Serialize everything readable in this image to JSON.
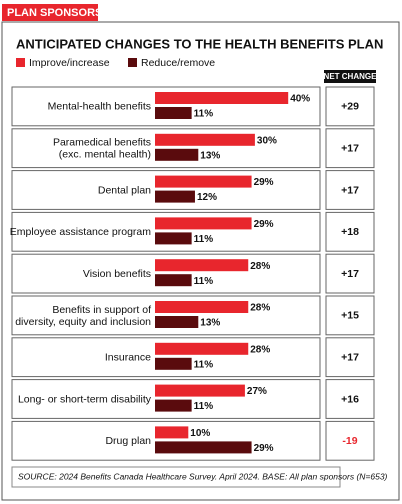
{
  "header": "PLAN SPONSORS",
  "chart_data": {
    "type": "bar",
    "orientation": "horizontal",
    "title": "ANTICIPATED CHANGES TO THE HEALTH BENEFITS PLAN",
    "categories": [
      "Mental-health benefits",
      "Paramedical benefits\n(exc. mental health)",
      "Dental plan",
      "Employee assistance program",
      "Vision benefits",
      "Benefits in support of\ndiversity, equity and inclusion",
      "Insurance",
      "Long- or short-term disability",
      "Drug plan"
    ],
    "series": [
      {
        "name": "Improve/increase",
        "color": "#e8262d",
        "values": [
          40,
          30,
          29,
          29,
          28,
          28,
          28,
          27,
          10
        ],
        "value_labels": [
          "40%",
          "30%",
          "29%",
          "29%",
          "28%",
          "28%",
          "28%",
          "27%",
          "10%"
        ]
      },
      {
        "name": "Reduce/remove",
        "color": "#5a0b0d",
        "values": [
          11,
          13,
          12,
          11,
          11,
          13,
          11,
          11,
          29
        ],
        "value_labels": [
          "11%",
          "13%",
          "12%",
          "11%",
          "11%",
          "13%",
          "11%",
          "11%",
          "29%"
        ]
      }
    ],
    "net_change_header": "NET CHANGE",
    "net_change": [
      "+29",
      "+17",
      "+17",
      "+18",
      "+17",
      "+15",
      "+17",
      "+16",
      "-19"
    ],
    "negative_color": "#e8262d",
    "source": "SOURCE: 2024 Benefits Canada Healthcare Survey. April 2024. BASE: All plan sponsors (N=653)"
  }
}
